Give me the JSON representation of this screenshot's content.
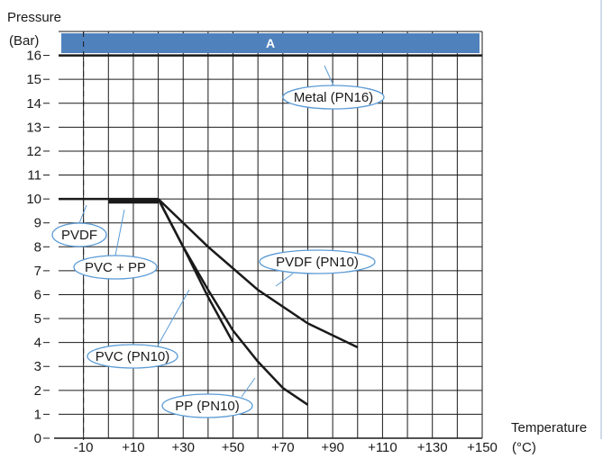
{
  "chart_data": {
    "type": "line",
    "ylabel": [
      "Pressure",
      "(Bar)"
    ],
    "xlabel": [
      "Temperature",
      "(°C)"
    ],
    "band_label": "A",
    "colors": {
      "band": "#4f81bd",
      "line": "#1a1a1a",
      "callout": "#5b9bd5",
      "grid": "#1a1a1a"
    },
    "xlim": [
      -20,
      150
    ],
    "ylim": [
      0,
      17
    ],
    "x_ticks": [
      -10,
      10,
      30,
      50,
      70,
      90,
      110,
      130,
      150
    ],
    "x_tick_labels": [
      "-10",
      "+10",
      "+30",
      "+50",
      "+70",
      "+90",
      "+110",
      "+130",
      "+150"
    ],
    "y_ticks": [
      0,
      1,
      2,
      3,
      4,
      5,
      6,
      7,
      8,
      9,
      10,
      11,
      12,
      13,
      14,
      15,
      16
    ],
    "y_tick_labels": [
      "0",
      "1",
      "2",
      "3",
      "4",
      "5",
      "6",
      "7",
      "8",
      "9",
      "10",
      "11",
      "12",
      "13",
      "14",
      "15",
      "16"
    ],
    "grid": true,
    "series": [
      {
        "name": "Metal (PN16)",
        "points": [
          [
            -20,
            16
          ],
          [
            150,
            16
          ]
        ]
      },
      {
        "name": "PVDF",
        "points": [
          [
            -20,
            10
          ],
          [
            20,
            10
          ]
        ]
      },
      {
        "name": "PVC + PP",
        "points": [
          [
            0,
            9.9
          ],
          [
            20,
            9.9
          ]
        ]
      },
      {
        "name": "PVDF (PN10)",
        "points": [
          [
            20,
            10
          ],
          [
            40,
            8
          ],
          [
            60,
            6.2
          ],
          [
            80,
            4.8
          ],
          [
            100,
            3.8
          ]
        ]
      },
      {
        "name": "PVC (PN10)",
        "points": [
          [
            20,
            10
          ],
          [
            30,
            8
          ],
          [
            40,
            5.9
          ],
          [
            50,
            4
          ]
        ]
      },
      {
        "name": "PP (PN10)",
        "points": [
          [
            20,
            10
          ],
          [
            30,
            8
          ],
          [
            40,
            6.2
          ],
          [
            50,
            4.5
          ],
          [
            60,
            3.2
          ],
          [
            70,
            2.1
          ],
          [
            80,
            1.4
          ]
        ]
      }
    ],
    "annotations": [
      "Metal (PN16)",
      "PVDF",
      "PVC + PP",
      "PVDF (PN10)",
      "PVC (PN10)",
      "PP (PN10)"
    ]
  }
}
